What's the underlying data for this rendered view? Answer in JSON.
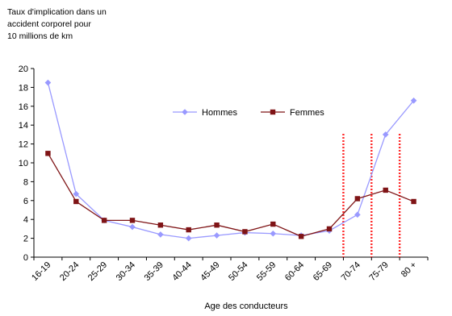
{
  "chart_data": {
    "type": "line",
    "ylabel_lines": [
      "Taux d'implication dans un",
      "accident corporel pour",
      "10 millions de km"
    ],
    "xlabel": "Age des conducteurs",
    "categories": [
      "16-19",
      "20-24",
      "25-29",
      "30-34",
      "35-39",
      "40-44",
      "45-49",
      "50-54",
      "55-59",
      "60-64",
      "65-69",
      "70-74",
      "75-79",
      "80 +"
    ],
    "yticks": [
      "0",
      "2",
      "4",
      "6",
      "8",
      "10",
      "12",
      "14",
      "16",
      "18",
      "20"
    ],
    "ylim": [
      0,
      20
    ],
    "grid": false,
    "legend_position": "top-center",
    "series": [
      {
        "name": "Hommes",
        "color": "#9999ff",
        "marker": "diamond",
        "values": [
          18.5,
          6.7,
          3.9,
          3.2,
          2.4,
          2.0,
          2.3,
          2.6,
          2.5,
          2.3,
          2.8,
          4.5,
          13.0,
          16.6
        ]
      },
      {
        "name": "Femmes",
        "color": "#7f1416",
        "marker": "square",
        "values": [
          11.0,
          5.9,
          3.9,
          3.9,
          3.4,
          2.9,
          3.4,
          2.7,
          3.5,
          2.2,
          3.0,
          6.2,
          7.1,
          5.9
        ]
      }
    ],
    "reference_lines": {
      "color": "#ff2a2a",
      "after_categories": [
        "65-69",
        "70-74",
        "75-79"
      ]
    }
  }
}
